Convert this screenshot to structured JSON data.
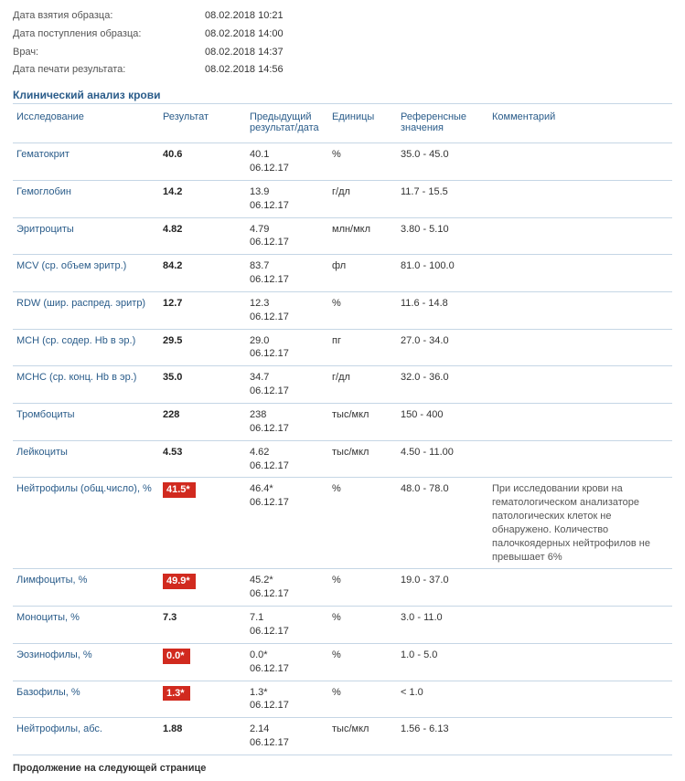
{
  "meta": {
    "rows": [
      {
        "label": "Дата взятия образца:",
        "value": "08.02.2018 10:21"
      },
      {
        "label": "Дата поступления образца:",
        "value": "08.02.2018 14:00"
      },
      {
        "label": "Врач:",
        "value": "08.02.2018 14:37"
      },
      {
        "label": "Дата печати результата:",
        "value": "08.02.2018 14:56"
      }
    ]
  },
  "section_title": "Клинический анализ крови",
  "headers": {
    "name": "Исследование",
    "result": "Результат",
    "prev": "Предыдущий результат/дата",
    "unit": "Единицы",
    "ref": "Референсные значения",
    "comment": "Комментарий"
  },
  "rows": [
    {
      "name": "Гематокрит",
      "result": "40.6",
      "flag": false,
      "prev_val": "40.1",
      "prev_date": "06.12.17",
      "unit": "%",
      "ref": "35.0 - 45.0",
      "comment": ""
    },
    {
      "name": "Гемоглобин",
      "result": "14.2",
      "flag": false,
      "prev_val": "13.9",
      "prev_date": "06.12.17",
      "unit": "г/дл",
      "ref": "11.7 - 15.5",
      "comment": ""
    },
    {
      "name": "Эритроциты",
      "result": "4.82",
      "flag": false,
      "prev_val": "4.79",
      "prev_date": "06.12.17",
      "unit": "млн/мкл",
      "ref": "3.80 - 5.10",
      "comment": ""
    },
    {
      "name": "MCV (ср. объем эритр.)",
      "result": "84.2",
      "flag": false,
      "prev_val": "83.7",
      "prev_date": "06.12.17",
      "unit": "фл",
      "ref": "81.0 - 100.0",
      "comment": ""
    },
    {
      "name": "RDW (шир. распред. эритр)",
      "result": "12.7",
      "flag": false,
      "prev_val": "12.3",
      "prev_date": "06.12.17",
      "unit": "%",
      "ref": "11.6 - 14.8",
      "comment": ""
    },
    {
      "name": "MCH (ср. содер. Hb в эр.)",
      "result": "29.5",
      "flag": false,
      "prev_val": "29.0",
      "prev_date": "06.12.17",
      "unit": "пг",
      "ref": "27.0 - 34.0",
      "comment": ""
    },
    {
      "name": "MCHC (ср. конц. Hb в эр.)",
      "result": "35.0",
      "flag": false,
      "prev_val": "34.7",
      "prev_date": "06.12.17",
      "unit": "г/дл",
      "ref": "32.0 - 36.0",
      "comment": ""
    },
    {
      "name": "Тромбоциты",
      "result": "228",
      "flag": false,
      "prev_val": "238",
      "prev_date": "06.12.17",
      "unit": "тыс/мкл",
      "ref": "150 - 400",
      "comment": ""
    },
    {
      "name": "Лейкоциты",
      "result": "4.53",
      "flag": false,
      "prev_val": "4.62",
      "prev_date": "06.12.17",
      "unit": "тыс/мкл",
      "ref": "4.50 - 11.00",
      "comment": ""
    },
    {
      "name": "Нейтрофилы (общ.число), %",
      "result": "41.5*",
      "flag": true,
      "prev_val": "46.4*",
      "prev_date": "06.12.17",
      "unit": "%",
      "ref": "48.0 - 78.0",
      "comment": "При исследовании крови на гематологическом анализаторе патологических клеток не обнаружено. Количество палочкоядерных нейтрофилов не превышает 6%"
    },
    {
      "name": "Лимфоциты, %",
      "result": "49.9*",
      "flag": true,
      "prev_val": "45.2*",
      "prev_date": "06.12.17",
      "unit": "%",
      "ref": "19.0 - 37.0",
      "comment": ""
    },
    {
      "name": "Моноциты, %",
      "result": "7.3",
      "flag": false,
      "prev_val": "7.1",
      "prev_date": "06.12.17",
      "unit": "%",
      "ref": "3.0 - 11.0",
      "comment": ""
    },
    {
      "name": "Эозинофилы, %",
      "result": "0.0*",
      "flag": true,
      "prev_val": "0.0*",
      "prev_date": "06.12.17",
      "unit": "%",
      "ref": "1.0 - 5.0",
      "comment": ""
    },
    {
      "name": "Базофилы, %",
      "result": "1.3*",
      "flag": true,
      "prev_val": "1.3*",
      "prev_date": "06.12.17",
      "unit": "%",
      "ref": "< 1.0",
      "comment": ""
    },
    {
      "name": "Нейтрофилы, абс.",
      "result": "1.88",
      "flag": false,
      "prev_val": "2.14",
      "prev_date": "06.12.17",
      "unit": "тыс/мкл",
      "ref": "1.56 - 6.13",
      "comment": ""
    }
  ],
  "continuation": "Продолжение на следующей странице",
  "colors": {
    "link": "#2a5c8a",
    "flag_bg": "#d12a1f",
    "border": "#c5d6e5"
  }
}
